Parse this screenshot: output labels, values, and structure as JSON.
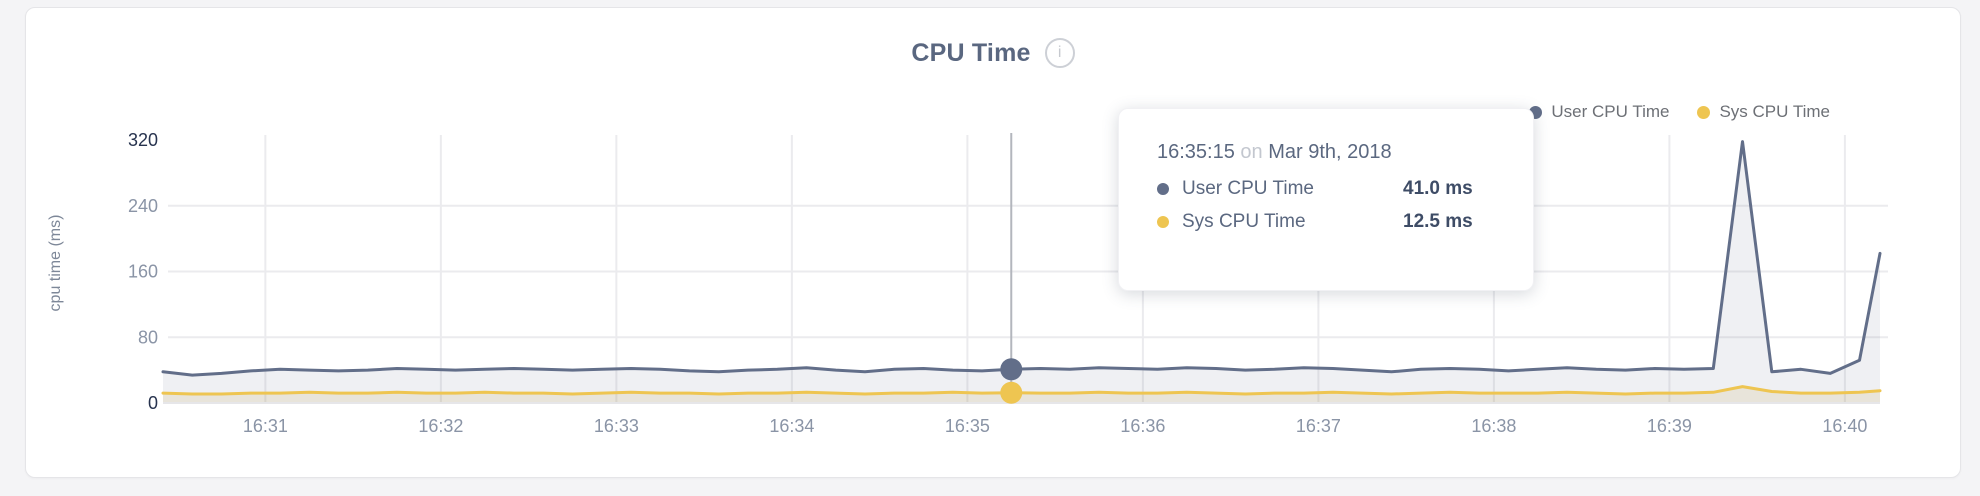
{
  "card": {
    "title": "CPU Time",
    "info_icon": "i"
  },
  "legend": [
    {
      "label": "User CPU Time",
      "color": "#626e89"
    },
    {
      "label": "Sys CPU Time",
      "color": "#eec551"
    }
  ],
  "tooltip": {
    "time": "16:35:15",
    "connector": "on",
    "date": "Mar 9th, 2018",
    "rows": [
      {
        "label": "User CPU Time",
        "value": "41.0 ms",
        "color": "#626e89"
      },
      {
        "label": "Sys CPU Time",
        "value": "12.5 ms",
        "color": "#eec551"
      }
    ]
  },
  "chart_data": {
    "type": "area",
    "title": "CPU Time",
    "ylabel": "cpu time (ms)",
    "ylim": [
      0,
      320
    ],
    "yticks": [
      0,
      80,
      160,
      240,
      320
    ],
    "yticks_emphasized": [
      0,
      320
    ],
    "xticks": [
      "16:31",
      "16:32",
      "16:33",
      "16:34",
      "16:35",
      "16:36",
      "16:37",
      "16:38",
      "16:39",
      "16:40"
    ],
    "x_range": [
      "16:30:25",
      "16:40:12"
    ],
    "grid": true,
    "legend_position": "top-right",
    "x": [
      "16:30:25",
      "16:30:35",
      "16:30:45",
      "16:30:55",
      "16:31:05",
      "16:31:15",
      "16:31:25",
      "16:31:35",
      "16:31:45",
      "16:31:55",
      "16:32:05",
      "16:32:15",
      "16:32:25",
      "16:32:35",
      "16:32:45",
      "16:32:55",
      "16:33:05",
      "16:33:15",
      "16:33:25",
      "16:33:35",
      "16:33:45",
      "16:33:55",
      "16:34:05",
      "16:34:15",
      "16:34:25",
      "16:34:35",
      "16:34:45",
      "16:34:55",
      "16:35:05",
      "16:35:15",
      "16:35:25",
      "16:35:35",
      "16:35:45",
      "16:35:55",
      "16:36:05",
      "16:36:15",
      "16:36:25",
      "16:36:35",
      "16:36:45",
      "16:36:55",
      "16:37:05",
      "16:37:15",
      "16:37:25",
      "16:37:35",
      "16:37:45",
      "16:37:55",
      "16:38:05",
      "16:38:15",
      "16:38:25",
      "16:38:35",
      "16:38:45",
      "16:38:55",
      "16:39:05",
      "16:39:15",
      "16:39:25",
      "16:39:35",
      "16:39:45",
      "16:39:55",
      "16:40:05",
      "16:40:12"
    ],
    "series": [
      {
        "name": "User CPU Time",
        "color": "#626e89",
        "fill": "rgba(99,111,136,0.10)",
        "values": [
          38,
          34,
          36,
          39,
          41,
          40,
          39,
          40,
          42,
          41,
          40,
          41,
          42,
          41,
          40,
          41,
          42,
          41,
          39,
          38,
          40,
          41,
          43,
          40,
          38,
          41,
          42,
          40,
          39,
          41,
          42,
          41,
          43,
          42,
          41,
          43,
          42,
          40,
          41,
          43,
          42,
          40,
          38,
          41,
          42,
          41,
          39,
          41,
          43,
          41,
          40,
          42,
          41,
          42,
          318,
          38,
          41,
          36,
          52,
          182
        ]
      },
      {
        "name": "Sys CPU Time",
        "color": "#eec551",
        "fill": "rgba(196,168,84,0.16)",
        "values": [
          12,
          11,
          11,
          12,
          12,
          13,
          12,
          12,
          13,
          12,
          12,
          13,
          12,
          12,
          11,
          12,
          13,
          12,
          12,
          11,
          12,
          12,
          13,
          12,
          11,
          12,
          12,
          13,
          12,
          12.5,
          12,
          12,
          13,
          12,
          12,
          13,
          12,
          11,
          12,
          12,
          13,
          12,
          11,
          12,
          13,
          12,
          12,
          12,
          13,
          12,
          11,
          12,
          12,
          13,
          20,
          14,
          12,
          12,
          13,
          15
        ]
      }
    ],
    "cursor": {
      "time": "16:35:15",
      "values": [
        41.0,
        12.5
      ]
    }
  }
}
